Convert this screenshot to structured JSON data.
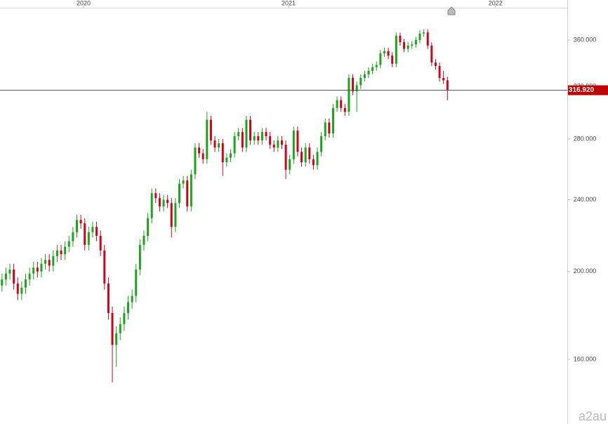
{
  "chart_data": {
    "type": "candlestick",
    "log_scale": true,
    "up_color": "#1aa51a",
    "down_color": "#d0021b",
    "xlim": [
      -0.5,
      143.4
    ],
    "xticks": [
      {
        "value": 20.7,
        "label": "2020"
      },
      {
        "value": 72.7,
        "label": "2021"
      },
      {
        "value": 125.2,
        "label": "2022"
      }
    ],
    "ylim": [
      135.8,
      390.1
    ],
    "yticks": [
      {
        "value": 160,
        "label": "160.000"
      },
      {
        "value": 200,
        "label": "200.000"
      },
      {
        "value": 240,
        "label": "240.000"
      },
      {
        "value": 280,
        "label": "280.000"
      },
      {
        "value": 320,
        "label": "320.000"
      },
      {
        "value": 360,
        "label": "360.000"
      }
    ],
    "price_line": {
      "value": 316.92,
      "label": "316.920",
      "color": "#c00000"
    },
    "watermark": "a2au",
    "open": [
      193,
      196,
      199,
      201,
      194,
      189,
      192,
      196,
      199,
      202,
      200,
      204,
      206,
      203,
      208,
      211,
      209,
      213,
      216,
      221,
      228,
      226,
      214,
      221,
      224,
      219,
      211,
      194,
      180,
      166,
      171,
      175,
      180,
      185,
      188,
      201,
      214,
      219,
      229,
      244,
      241,
      236,
      240,
      238,
      224,
      238,
      250,
      252,
      236,
      256,
      274,
      270,
      266,
      294,
      279,
      274,
      277,
      264,
      267,
      270,
      282,
      285,
      274,
      294,
      279,
      282,
      279,
      285,
      282,
      276,
      274,
      279,
      276,
      259,
      266,
      286,
      271,
      264,
      274,
      266,
      262,
      271,
      282,
      292,
      284,
      303,
      309,
      303,
      300,
      327,
      316,
      321,
      327,
      330,
      333,
      336,
      338,
      348,
      350,
      346,
      339,
      364,
      358,
      352,
      355,
      356,
      360,
      366,
      367,
      355,
      340,
      337,
      327,
      325
    ],
    "high": [
      199,
      202,
      204,
      204,
      197,
      195,
      199,
      202,
      205,
      205,
      207,
      209,
      209,
      211,
      214,
      214,
      216,
      219,
      224,
      231,
      231,
      229,
      224,
      227,
      227,
      222,
      214,
      197,
      183,
      174,
      178,
      183,
      188,
      191,
      204,
      217,
      222,
      232,
      247,
      247,
      244,
      243,
      243,
      241,
      241,
      253,
      255,
      255,
      259,
      277,
      277,
      273,
      300,
      297,
      282,
      280,
      280,
      270,
      273,
      285,
      288,
      288,
      297,
      297,
      285,
      285,
      288,
      288,
      285,
      279,
      282,
      282,
      279,
      269,
      289,
      289,
      274,
      277,
      277,
      269,
      274,
      285,
      295,
      295,
      306,
      312,
      312,
      306,
      330,
      330,
      324,
      330,
      333,
      336,
      339,
      341,
      351,
      353,
      353,
      349,
      367,
      367,
      361,
      358,
      359,
      363,
      369,
      370,
      370,
      358,
      343,
      340,
      333,
      328
    ],
    "low": [
      190,
      193,
      196,
      191,
      186,
      186,
      189,
      193,
      196,
      197,
      197,
      201,
      200,
      200,
      205,
      206,
      206,
      210,
      213,
      218,
      223,
      211,
      211,
      218,
      216,
      208,
      191,
      177,
      151,
      157,
      168,
      172,
      177,
      182,
      185,
      198,
      211,
      216,
      226,
      238,
      233,
      233,
      235,
      218,
      221,
      235,
      247,
      233,
      233,
      253,
      267,
      263,
      263,
      276,
      271,
      271,
      255,
      261,
      264,
      267,
      279,
      271,
      271,
      276,
      276,
      276,
      276,
      279,
      273,
      271,
      271,
      273,
      253,
      256,
      263,
      268,
      261,
      261,
      263,
      259,
      259,
      268,
      279,
      281,
      281,
      300,
      300,
      297,
      297,
      313,
      300,
      318,
      324,
      327,
      330,
      333,
      335,
      345,
      343,
      336,
      336,
      355,
      349,
      349,
      352,
      353,
      357,
      363,
      352,
      337,
      334,
      324,
      322,
      309
    ],
    "close": [
      196,
      199,
      201,
      194,
      189,
      192,
      196,
      199,
      202,
      200,
      204,
      206,
      203,
      208,
      211,
      209,
      213,
      216,
      221,
      228,
      226,
      214,
      221,
      224,
      219,
      211,
      194,
      180,
      166,
      171,
      175,
      180,
      185,
      188,
      201,
      214,
      219,
      229,
      244,
      241,
      236,
      240,
      238,
      224,
      238,
      250,
      252,
      236,
      256,
      274,
      270,
      266,
      294,
      279,
      274,
      277,
      264,
      267,
      270,
      282,
      285,
      274,
      294,
      279,
      282,
      279,
      285,
      282,
      276,
      274,
      279,
      276,
      259,
      266,
      286,
      271,
      264,
      274,
      266,
      262,
      271,
      282,
      292,
      284,
      303,
      309,
      303,
      300,
      327,
      316,
      321,
      327,
      330,
      333,
      336,
      338,
      348,
      350,
      346,
      339,
      364,
      358,
      352,
      355,
      356,
      360,
      366,
      367,
      355,
      340,
      337,
      327,
      325,
      316.92
    ]
  }
}
